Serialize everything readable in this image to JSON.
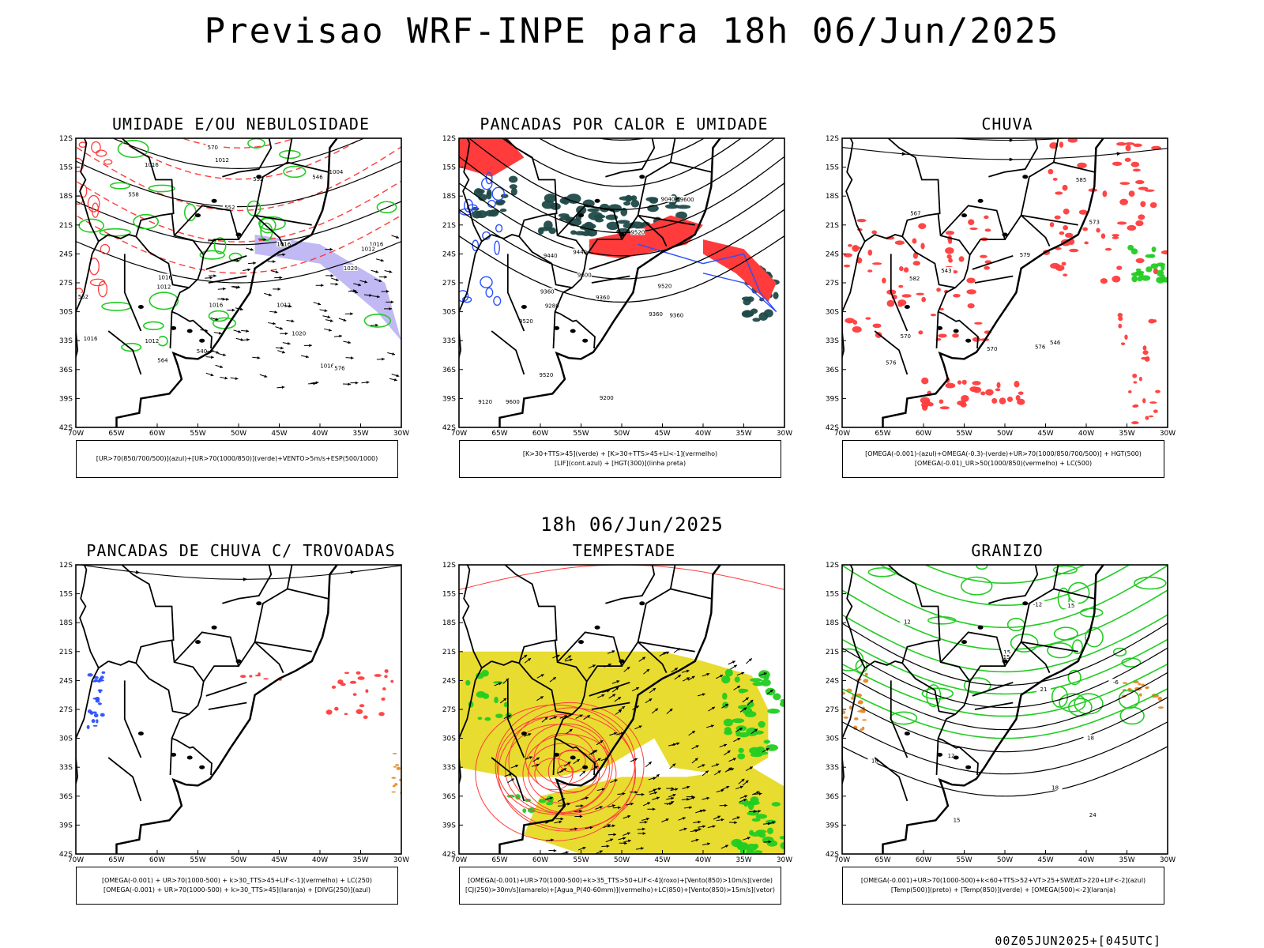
{
  "title": "Previsao WRF-INPE  para 18h 06/Jun/2025",
  "mid_date": "18h 06/Jun/2025",
  "footer": "00Z05JUN2025+[045UTC]",
  "colors": {
    "red": "#ff3b3b",
    "green": "#22cc22",
    "blue": "#2b50ff",
    "darkteal": "#1f4a48",
    "yellow": "#e8dc30",
    "orange": "#e88a2a",
    "lavender": "#b0a8f0",
    "black": "#000000"
  },
  "axes": {
    "lat_labels": [
      "12S",
      "15S",
      "18S",
      "21S",
      "24S",
      "27S",
      "30S",
      "33S",
      "36S",
      "39S",
      "42S"
    ],
    "lon_labels": [
      "70W",
      "65W",
      "60W",
      "55W",
      "50W",
      "45W",
      "40W",
      "35W",
      "30W"
    ]
  },
  "panels": [
    {
      "id": "umidade",
      "title": "UMIDADE E/OU NEBULOSIDADE",
      "legend": [
        "[UR>70(850/700/500)](azul)+[UR>70(1000/850)](verde)+VENTO>5m/s+ESP(500/1000)"
      ],
      "labels": [
        "1016",
        "1012",
        "1012",
        "1012",
        "1016",
        "570",
        "1016",
        "1016",
        "576",
        "1016",
        "1012",
        "564",
        "1020",
        "558",
        "552",
        "1016",
        "1012",
        "540",
        "1004",
        "552",
        "546",
        "1020",
        "1016",
        "552"
      ]
    },
    {
      "id": "pancadas-calor",
      "title": "PANCADAS POR CALOR E UMIDADE",
      "legend": [
        "[K>30+TTS>45](verde) + [K>30+TTS>45+LI<-1](vermelho)",
        "[LIF](cont.azul) + [HGT(300)](linha preta)"
      ],
      "labels": [
        "9600",
        "9520",
        "9600",
        "9520",
        "9600",
        "9520",
        "9440",
        "9360",
        "9440",
        "9360",
        "9360",
        "9200",
        "9120",
        "9040",
        "9280",
        "9520",
        "9360"
      ]
    },
    {
      "id": "chuva",
      "title": "CHUVA",
      "legend": [
        "[OMEGA(-0.001)-(azul)+OMEGA(-0.3)-(verde)+UR>70(1000/850/700/500)] + HGT(500)",
        "[OMEGA(-0.01)_UR>50(1000/850)(vermelho) + LC(500)"
      ],
      "labels": [
        "585",
        "582",
        "579",
        "576",
        "573",
        "570",
        "567",
        "543",
        "546",
        "570",
        "576"
      ]
    },
    {
      "id": "pancadas-trovoadas",
      "title": "PANCADAS DE CHUVA C/ TROVOADAS",
      "legend": [
        "[OMEGA(-0.001) + UR>70(1000-500) + k>30_TTS>45+LIF<-1](vermelho) + LC(250)",
        "[OMEGA(-0.001) + UR>70(1000-500) + k>30_TTS>45](laranja) + [DIVG(250)](azul)"
      ],
      "labels": []
    },
    {
      "id": "tempestade",
      "title": "TEMPESTADE",
      "legend": [
        "[OMEGA(-0.001)+UR>70(1000-500)+k>35_TTS>50+LIF<-4](roxo)+[Vento(850)>10m/s](verde)",
        "[CJ(250)>30m/s](amarelo)+[Agua_P(40-60mm)](vermelho)+LC(850)+[Vento(850)>15m/s](vetor)"
      ],
      "labels": []
    },
    {
      "id": "granizo",
      "title": "GRANIZO",
      "legend": [
        "[OMEGA(-0.001)+UR>70(1000-500)+k<60+TTS>52+VT>25+SWEAT>220+LIF<-2](azul)",
        "[Temp(500)](preto) + [Temp(850)](verde) + [OMEGA(500)<-2](laranja)"
      ],
      "labels": [
        "-6",
        "15",
        "15",
        "12",
        "15",
        "12",
        "15",
        "18",
        "-12",
        "18",
        "21",
        "24",
        "18"
      ]
    }
  ]
}
